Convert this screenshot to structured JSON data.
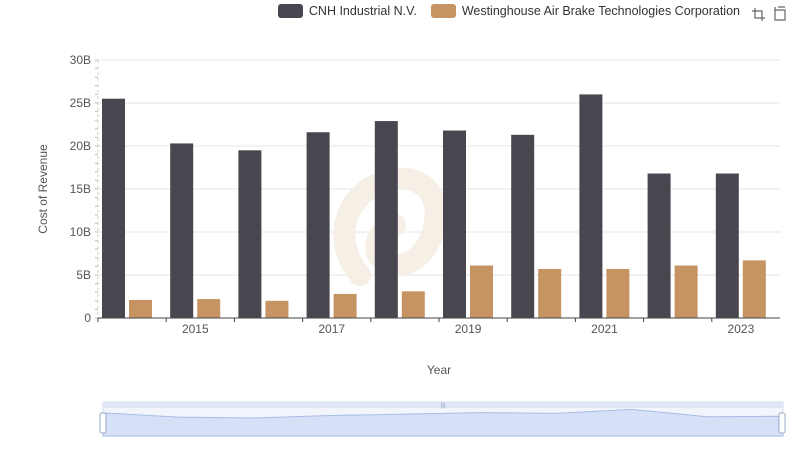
{
  "chart_data": {
    "type": "bar",
    "categories": [
      "2014",
      "2015",
      "2016",
      "2017",
      "2018",
      "2019",
      "2020",
      "2021",
      "2022",
      "2023"
    ],
    "x_tick_labels": [
      "2015",
      "2017",
      "2019",
      "2021",
      "2023"
    ],
    "series": [
      {
        "name": "CNH Industrial N.V.",
        "color": "#484750",
        "values": [
          25.5,
          20.3,
          19.5,
          21.6,
          22.9,
          21.8,
          21.3,
          26.0,
          16.8,
          16.8
        ]
      },
      {
        "name": "Westinghouse Air Brake Technologies Corporation",
        "color": "#c69363",
        "values": [
          2.1,
          2.2,
          2.0,
          2.8,
          3.1,
          6.1,
          5.7,
          5.7,
          6.1,
          6.7
        ]
      }
    ],
    "xlabel": "Year",
    "ylabel": "Cost of Revenue",
    "ylim": [
      0,
      30
    ],
    "y_ticks": [
      0,
      5,
      10,
      15,
      20,
      25,
      30
    ],
    "y_tick_labels": [
      "0",
      "5B",
      "10B",
      "15B",
      "20B",
      "25B",
      "30B"
    ],
    "grid": true,
    "legend_position": "top-right",
    "data_zoom": {
      "start": 0,
      "end": 100
    }
  },
  "toolbox": {
    "zoom_icon": "zoom-icon",
    "reset_icon": "restore-icon"
  }
}
